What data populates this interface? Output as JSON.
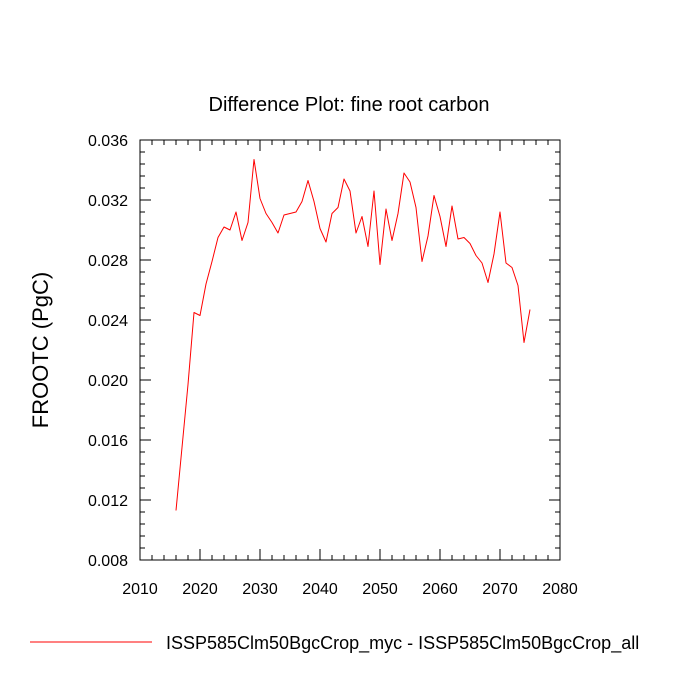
{
  "chart_data": {
    "type": "line",
    "title": "Difference Plot: fine root carbon",
    "xlabel": "",
    "ylabel": "FROOTC  (PgC)",
    "xlim": [
      2010,
      2080
    ],
    "ylim": [
      0.008,
      0.036
    ],
    "xticks": [
      "2010",
      "2020",
      "2030",
      "2040",
      "2050",
      "2060",
      "2070",
      "2080"
    ],
    "yticks": [
      "0.008",
      "0.012",
      "0.016",
      "0.020",
      "0.024",
      "0.028",
      "0.032",
      "0.036"
    ],
    "grid": false,
    "legend_position": "bottom",
    "series": [
      {
        "name": "ISSP585Clm50BgcCrop_myc - ISSP585Clm50BgcCrop_all",
        "color": "#ff0000",
        "x": [
          2016,
          2017,
          2018,
          2019,
          2020,
          2021,
          2022,
          2023,
          2024,
          2025,
          2026,
          2027,
          2028,
          2029,
          2030,
          2031,
          2032,
          2033,
          2034,
          2035,
          2036,
          2037,
          2038,
          2039,
          2040,
          2041,
          2042,
          2043,
          2044,
          2045,
          2046,
          2047,
          2048,
          2049,
          2050,
          2051,
          2052,
          2053,
          2054,
          2055,
          2056,
          2057,
          2058,
          2059,
          2060,
          2061,
          2062,
          2063,
          2064,
          2065,
          2066,
          2067,
          2068,
          2069,
          2070,
          2071,
          2072,
          2073,
          2074,
          2075
        ],
        "y": [
          0.0113,
          0.0155,
          0.0197,
          0.0245,
          0.0243,
          0.0264,
          0.0279,
          0.0295,
          0.0302,
          0.03,
          0.0312,
          0.0293,
          0.0305,
          0.0347,
          0.0321,
          0.0311,
          0.0305,
          0.0298,
          0.031,
          0.0311,
          0.0312,
          0.0319,
          0.0333,
          0.0319,
          0.0301,
          0.0292,
          0.0311,
          0.0315,
          0.0334,
          0.0326,
          0.0298,
          0.0309,
          0.0289,
          0.0326,
          0.0277,
          0.0314,
          0.0293,
          0.0311,
          0.0338,
          0.0332,
          0.0315,
          0.0279,
          0.0296,
          0.0323,
          0.0309,
          0.0289,
          0.0316,
          0.0294,
          0.0295,
          0.0291,
          0.0283,
          0.0278,
          0.0265,
          0.0284,
          0.0312,
          0.0278,
          0.0275,
          0.0263,
          0.0225,
          0.0247
        ]
      }
    ]
  }
}
